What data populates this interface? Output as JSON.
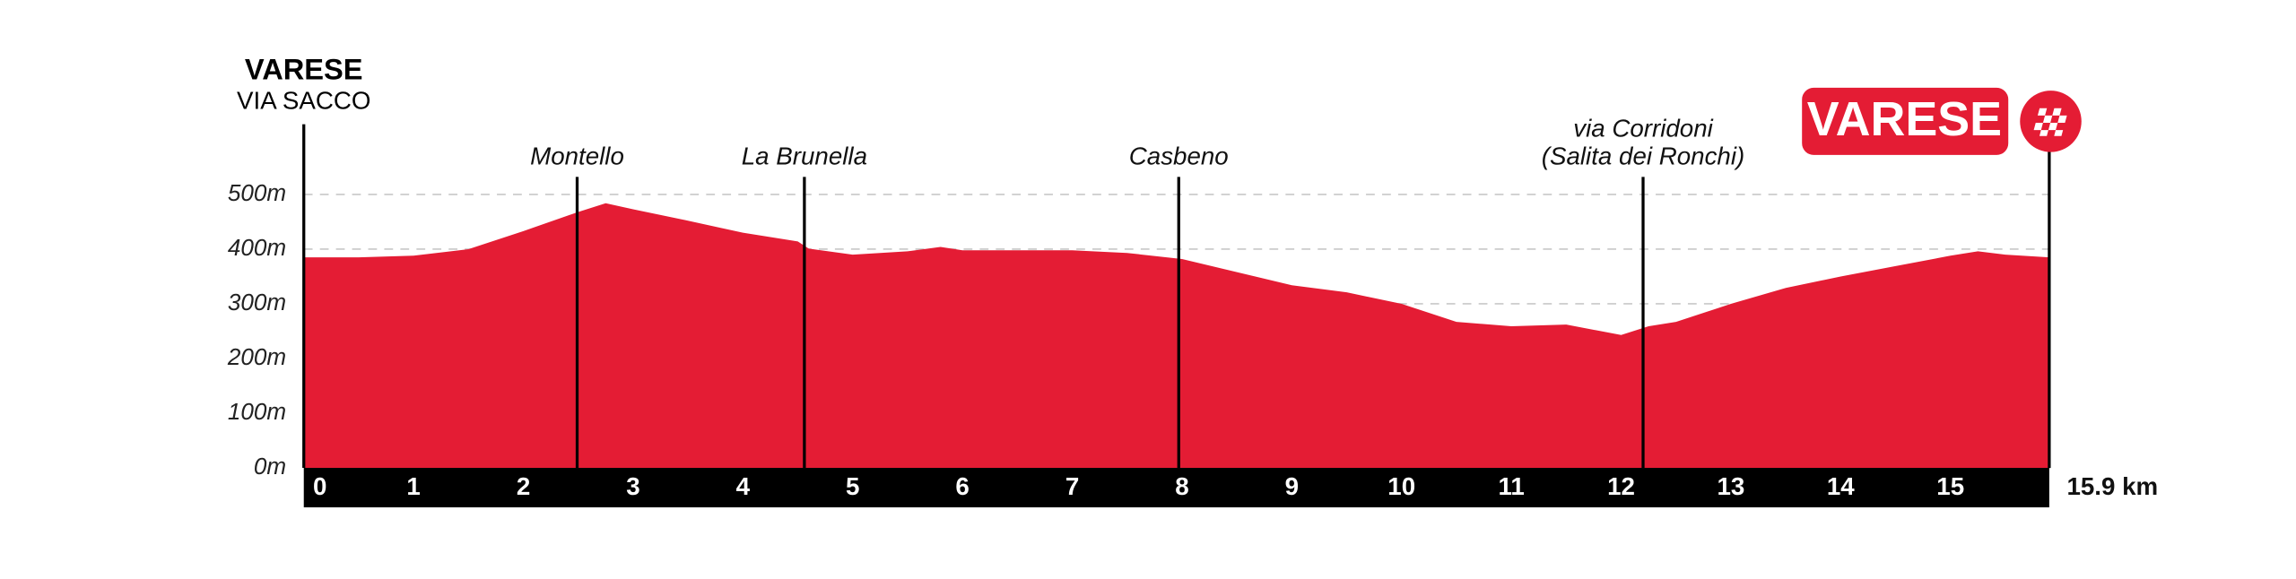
{
  "chart_data": {
    "type": "area",
    "start": {
      "title": "VARESE",
      "subtitle": "VIA SACCO"
    },
    "finish": "VARESE",
    "x": [
      0,
      0.5,
      1,
      1.5,
      2,
      2.5,
      2.75,
      3,
      3.5,
      4,
      4.5,
      4.6,
      5,
      5.5,
      5.8,
      6,
      6.5,
      7,
      7.5,
      8,
      8.5,
      9,
      9.5,
      10,
      10.5,
      11,
      11.5,
      12,
      12.25,
      12.5,
      13,
      13.5,
      14,
      14.5,
      15,
      15.25,
      15.5,
      15.9
    ],
    "values": [
      385,
      385,
      388,
      400,
      433,
      468,
      484,
      473,
      452,
      430,
      414,
      401,
      390,
      396,
      404,
      398,
      398,
      398,
      393,
      382,
      358,
      334,
      321,
      300,
      267,
      259,
      262,
      243,
      259,
      267,
      300,
      329,
      350,
      369,
      388,
      396,
      390,
      385
    ],
    "color": "#e41c34",
    "xlim": [
      0,
      15.9
    ],
    "xticks": [
      0,
      1,
      2,
      3,
      4,
      5,
      6,
      7,
      8,
      9,
      10,
      11,
      12,
      13,
      14,
      15
    ],
    "x_end_label": "15.9 km",
    "ylim": [
      0,
      500
    ],
    "yticks": [
      {
        "value": 0,
        "label": "0m"
      },
      {
        "value": 100,
        "label": "100m"
      },
      {
        "value": 200,
        "label": "200m"
      },
      {
        "value": 300,
        "label": "300m"
      },
      {
        "value": 400,
        "label": "400m"
      },
      {
        "value": 500,
        "label": "500m"
      }
    ],
    "grid": true,
    "annotations": [
      {
        "x": 2.49,
        "lines": [
          "Montello"
        ]
      },
      {
        "x": 4.56,
        "lines": [
          "La Brunella"
        ]
      },
      {
        "x": 7.97,
        "lines": [
          "Casbeno"
        ]
      },
      {
        "x": 12.2,
        "lines": [
          "via Corridoni",
          "(Salita dei Ronchi)"
        ]
      }
    ]
  }
}
